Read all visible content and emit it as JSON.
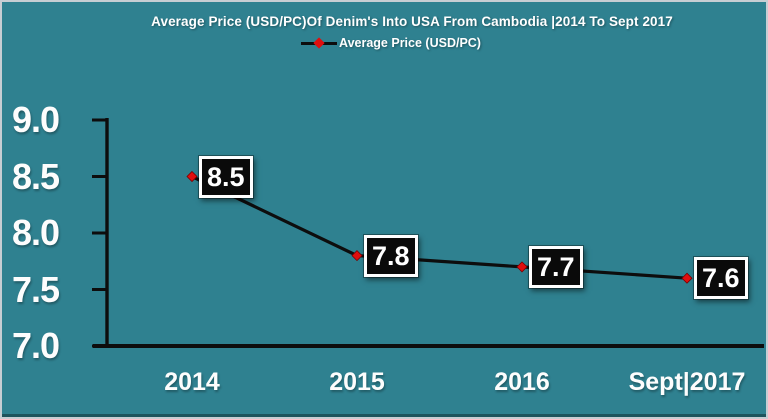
{
  "chart_data": {
    "type": "line",
    "title": "Average Price (USD/PC)Of Denim's Into USA From Cambodia |2014 To Sept 2017",
    "legend": "Average Price (USD/PC)",
    "legend_position": "top",
    "categories": [
      "2014",
      "2015",
      "2016",
      "Sept|2017"
    ],
    "series": [
      {
        "name": "Average Price (USD/PC)",
        "values": [
          8.5,
          7.8,
          7.7,
          7.6
        ]
      }
    ],
    "values": [
      8.5,
      7.8,
      7.7,
      7.6
    ],
    "value_labels": [
      "8.5",
      "7.8",
      "7.7",
      "7.6"
    ],
    "ylim": [
      7.0,
      9.0
    ],
    "yticks": [
      9.0,
      8.5,
      8.0,
      7.5,
      7.0
    ],
    "ytick_labels": [
      "9.0",
      "8.5",
      "8.0",
      "7.5",
      "7.0"
    ],
    "xlabel": "",
    "ylabel": "",
    "grid": false,
    "colors": {
      "background": "#2f8190",
      "line": "#0d0d0d",
      "axis": "#0d0d0d",
      "marker": "#e00e0e",
      "marker_edge": "#7a0000",
      "text": "#ffffff",
      "label_box_bg": "#0a0a0a",
      "label_box_border": "#ffffff"
    }
  }
}
